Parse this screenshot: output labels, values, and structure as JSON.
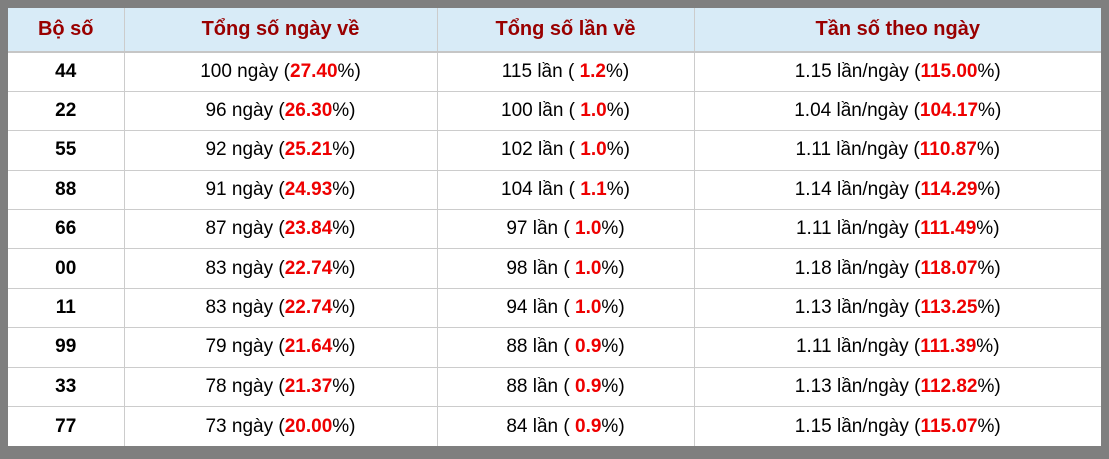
{
  "colors": {
    "frame-border": "#7f7f7f",
    "header-bg": "#d8ebf7",
    "header-text": "#990000",
    "grid-line": "#cccccc",
    "row-bg": "#ffffff",
    "body-text": "#000000",
    "percent-red": "#ee0000"
  },
  "table": {
    "headers": [
      "Bộ số",
      "Tổng số ngày về",
      "Tổng số lần về",
      "Tần số theo ngày"
    ],
    "rows": [
      {
        "pair": "44",
        "cells": [
          [
            {
              "t": "100 ngày ("
            },
            {
              "t": "27.40",
              "red": true
            },
            {
              "t": "%)"
            }
          ],
          [
            {
              "t": "115 lần ( "
            },
            {
              "t": "1.2",
              "red": true
            },
            {
              "t": "%)"
            }
          ],
          [
            {
              "t": "1.15 lần/ngày ("
            },
            {
              "t": "115.00",
              "red": true
            },
            {
              "t": "%)"
            }
          ]
        ]
      },
      {
        "pair": "22",
        "cells": [
          [
            {
              "t": "96 ngày ("
            },
            {
              "t": "26.30",
              "red": true
            },
            {
              "t": "%)"
            }
          ],
          [
            {
              "t": "100 lần ( "
            },
            {
              "t": "1.0",
              "red": true
            },
            {
              "t": "%)"
            }
          ],
          [
            {
              "t": "1.04 lần/ngày ("
            },
            {
              "t": "104.17",
              "red": true
            },
            {
              "t": "%)"
            }
          ]
        ]
      },
      {
        "pair": "55",
        "cells": [
          [
            {
              "t": "92 ngày ("
            },
            {
              "t": "25.21",
              "red": true
            },
            {
              "t": "%)"
            }
          ],
          [
            {
              "t": "102 lần ( "
            },
            {
              "t": "1.0",
              "red": true
            },
            {
              "t": "%)"
            }
          ],
          [
            {
              "t": "1.11 lần/ngày ("
            },
            {
              "t": "110.87",
              "red": true
            },
            {
              "t": "%)"
            }
          ]
        ]
      },
      {
        "pair": "88",
        "cells": [
          [
            {
              "t": "91 ngày ("
            },
            {
              "t": "24.93",
              "red": true
            },
            {
              "t": "%)"
            }
          ],
          [
            {
              "t": "104 lần ( "
            },
            {
              "t": "1.1",
              "red": true
            },
            {
              "t": "%)"
            }
          ],
          [
            {
              "t": "1.14 lần/ngày ("
            },
            {
              "t": "114.29",
              "red": true
            },
            {
              "t": "%)"
            }
          ]
        ]
      },
      {
        "pair": "66",
        "cells": [
          [
            {
              "t": "87 ngày ("
            },
            {
              "t": "23.84",
              "red": true
            },
            {
              "t": "%)"
            }
          ],
          [
            {
              "t": "97 lần ( "
            },
            {
              "t": "1.0",
              "red": true
            },
            {
              "t": "%)"
            }
          ],
          [
            {
              "t": "1.11 lần/ngày ("
            },
            {
              "t": "111.49",
              "red": true
            },
            {
              "t": "%)"
            }
          ]
        ]
      },
      {
        "pair": "00",
        "cells": [
          [
            {
              "t": "83 ngày ("
            },
            {
              "t": "22.74",
              "red": true
            },
            {
              "t": "%)"
            }
          ],
          [
            {
              "t": "98 lần ( "
            },
            {
              "t": "1.0",
              "red": true
            },
            {
              "t": "%)"
            }
          ],
          [
            {
              "t": "1.18 lần/ngày ("
            },
            {
              "t": "118.07",
              "red": true
            },
            {
              "t": "%)"
            }
          ]
        ]
      },
      {
        "pair": "11",
        "cells": [
          [
            {
              "t": "83 ngày ("
            },
            {
              "t": "22.74",
              "red": true
            },
            {
              "t": "%)"
            }
          ],
          [
            {
              "t": "94 lần ( "
            },
            {
              "t": "1.0",
              "red": true
            },
            {
              "t": "%)"
            }
          ],
          [
            {
              "t": "1.13 lần/ngày ("
            },
            {
              "t": "113.25",
              "red": true
            },
            {
              "t": "%)"
            }
          ]
        ]
      },
      {
        "pair": "99",
        "cells": [
          [
            {
              "t": "79 ngày ("
            },
            {
              "t": "21.64",
              "red": true
            },
            {
              "t": "%)"
            }
          ],
          [
            {
              "t": "88 lần ( "
            },
            {
              "t": "0.9",
              "red": true
            },
            {
              "t": "%)"
            }
          ],
          [
            {
              "t": "1.11 lần/ngày ("
            },
            {
              "t": "111.39",
              "red": true
            },
            {
              "t": "%)"
            }
          ]
        ]
      },
      {
        "pair": "33",
        "cells": [
          [
            {
              "t": "78 ngày ("
            },
            {
              "t": "21.37",
              "red": true
            },
            {
              "t": "%)"
            }
          ],
          [
            {
              "t": "88 lần ( "
            },
            {
              "t": "0.9",
              "red": true
            },
            {
              "t": "%)"
            }
          ],
          [
            {
              "t": "1.13 lần/ngày ("
            },
            {
              "t": "112.82",
              "red": true
            },
            {
              "t": "%)"
            }
          ]
        ]
      },
      {
        "pair": "77",
        "cells": [
          [
            {
              "t": "73 ngày ("
            },
            {
              "t": "20.00",
              "red": true
            },
            {
              "t": "%)"
            }
          ],
          [
            {
              "t": "84 lần ( "
            },
            {
              "t": "0.9",
              "red": true
            },
            {
              "t": "%)"
            }
          ],
          [
            {
              "t": "1.15 lần/ngày ("
            },
            {
              "t": "115.07",
              "red": true
            },
            {
              "t": "%)"
            }
          ]
        ]
      }
    ]
  }
}
